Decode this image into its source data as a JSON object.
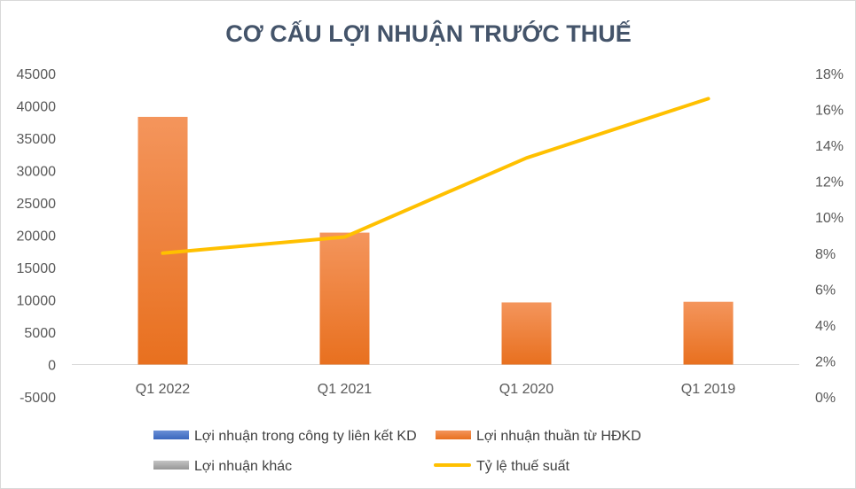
{
  "chart_data": {
    "type": "bar",
    "title": "CƠ CẤU LỢI NHUẬN TRƯỚC THUẾ",
    "categories": [
      "Q1 2022",
      "Q1 2021",
      "Q1 2020",
      "Q1 2019"
    ],
    "y_left": {
      "ylim": [
        -5000,
        45000
      ],
      "ticks": [
        -5000,
        0,
        5000,
        10000,
        15000,
        20000,
        25000,
        30000,
        35000,
        40000,
        45000
      ],
      "tick_labels": [
        "-5000",
        "0",
        "5000",
        "10000",
        "15000",
        "20000",
        "25000",
        "30000",
        "35000",
        "40000",
        "45000"
      ]
    },
    "y_right": {
      "ylim": [
        0,
        0.18
      ],
      "ticks": [
        0,
        0.02,
        0.04,
        0.06,
        0.08,
        0.1,
        0.12,
        0.14,
        0.16,
        0.18
      ],
      "tick_labels": [
        "0%",
        "2%",
        "4%",
        "6%",
        "8%",
        "10%",
        "12%",
        "14%",
        "16%",
        "18%"
      ]
    },
    "series": [
      {
        "name": "Lợi nhuận trong công ty liên kết KD",
        "kind": "bar",
        "axis": "left",
        "color": "#4472c4",
        "values": [
          0,
          0,
          0,
          0
        ]
      },
      {
        "name": "Lợi nhuận thuần từ HĐKD",
        "kind": "bar",
        "axis": "left",
        "color": "#ed7d31",
        "values": [
          38300,
          20400,
          9600,
          9700
        ]
      },
      {
        "name": "Lợi nhuận khác",
        "kind": "bar",
        "axis": "left",
        "color": "#a5a5a5",
        "values": [
          0,
          0,
          0,
          0
        ]
      },
      {
        "name": "Tỷ lệ thuế suất",
        "kind": "line",
        "axis": "right",
        "color": "#ffc000",
        "values": [
          0.08,
          0.089,
          0.133,
          0.166
        ]
      }
    ],
    "grid": false,
    "legend_position": "bottom"
  }
}
